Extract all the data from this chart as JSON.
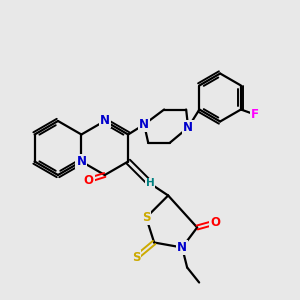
{
  "background_color": "#e8e8e8",
  "atom_colors": {
    "N": "#0000cc",
    "O": "#ff0000",
    "S": "#ccaa00",
    "F": "#ff00ff",
    "C": "#000000",
    "H": "#008080"
  },
  "figsize": [
    3.0,
    3.0
  ],
  "dpi": 100
}
